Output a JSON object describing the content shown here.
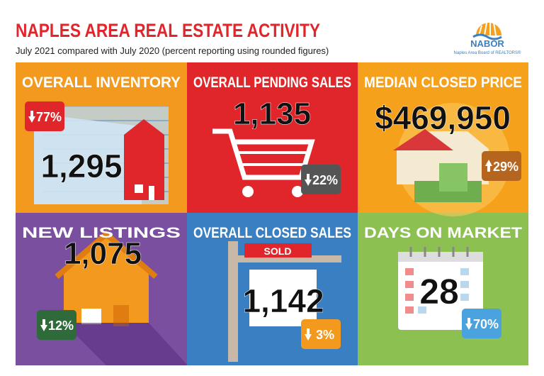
{
  "header": {
    "title": "NAPLES AREA REAL ESTATE ACTIVITY",
    "subtitle": "July 2021 compared with July 2020 (percent reporting using rounded figures)"
  },
  "logo": {
    "name": "NABOR",
    "tagline": "Naples Area Board of REALTORS®"
  },
  "sign": "SOLD",
  "tiles": [
    {
      "title": "OVERALL INVENTORY",
      "value": "1,295",
      "change": "77%",
      "direction": "down",
      "color": "#f39a1e",
      "badge_color": "#e0262b"
    },
    {
      "title": "OVERALL PENDING SALES",
      "value": "1,135",
      "change": "22%",
      "direction": "down",
      "color": "#e0262b",
      "badge_color": "#555555"
    },
    {
      "title": "MEDIAN CLOSED PRICE",
      "value": "$469,950",
      "change": "29%",
      "direction": "up",
      "color": "#f6a11c",
      "badge_color": "#b5651d"
    },
    {
      "title": "NEW LISTINGS",
      "value": "1,075",
      "change": "12%",
      "direction": "down",
      "color": "#7b4fa0",
      "badge_color": "#2f6b3a"
    },
    {
      "title": "OVERALL CLOSED SALES",
      "value": "1,142",
      "change": "3%",
      "direction": "down",
      "color": "#3a7fc1",
      "badge_color": "#f39a1e"
    },
    {
      "title": "DAYS ON MARKET",
      "value": "28",
      "change": "70%",
      "direction": "down",
      "color": "#8cc152",
      "badge_color": "#4aa3df"
    }
  ]
}
